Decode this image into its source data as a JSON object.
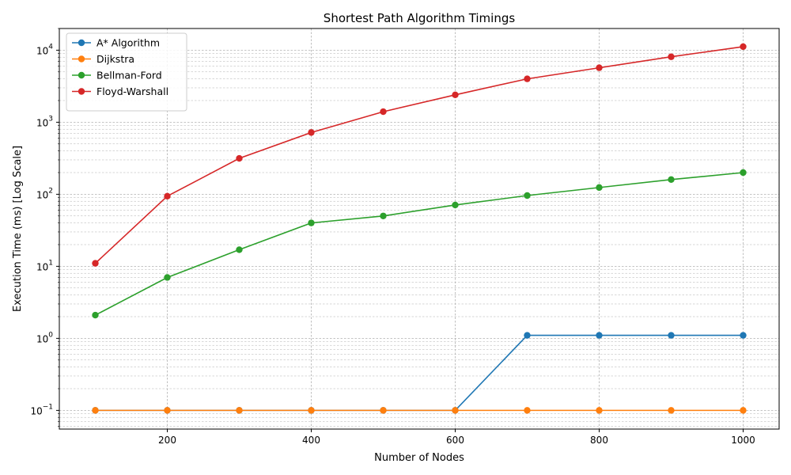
{
  "chart_data": {
    "type": "line",
    "title": "Shortest Path Algorithm Timings",
    "xlabel": "Number of Nodes",
    "ylabel": "Execution Time (ms) [Log Scale]",
    "x": [
      100,
      200,
      300,
      400,
      500,
      600,
      700,
      800,
      900,
      1000
    ],
    "xlim": [
      50,
      1050
    ],
    "ylim": [
      0.055,
      20000
    ],
    "yscale": "log",
    "xticks": [
      200,
      400,
      600,
      800,
      1000
    ],
    "yticks": [
      {
        "value": 0.1,
        "base": "10",
        "exp": "−1"
      },
      {
        "value": 1,
        "base": "10",
        "exp": "0"
      },
      {
        "value": 10,
        "base": "10",
        "exp": "1"
      },
      {
        "value": 100,
        "base": "10",
        "exp": "2"
      },
      {
        "value": 1000,
        "base": "10",
        "exp": "3"
      },
      {
        "value": 10000,
        "base": "10",
        "exp": "4"
      }
    ],
    "grid": true,
    "legend_position": "top-left",
    "series": [
      {
        "name": "A* Algorithm",
        "color": "#1f77b4",
        "values": [
          0.1,
          0.1,
          0.1,
          0.1,
          0.1,
          0.1,
          1.1,
          1.1,
          1.1,
          1.1
        ]
      },
      {
        "name": "Dijkstra",
        "color": "#ff7f0e",
        "values": [
          0.1,
          0.1,
          0.1,
          0.1,
          0.1,
          0.1,
          0.1,
          0.1,
          0.1,
          0.1
        ]
      },
      {
        "name": "Bellman-Ford",
        "color": "#2ca02c",
        "values": [
          2.1,
          7,
          17,
          40,
          50,
          71,
          96,
          124,
          160,
          200
        ]
      },
      {
        "name": "Floyd-Warshall",
        "color": "#d62728",
        "values": [
          11,
          94,
          315,
          720,
          1400,
          2400,
          4000,
          5700,
          8100,
          11200
        ]
      }
    ]
  }
}
